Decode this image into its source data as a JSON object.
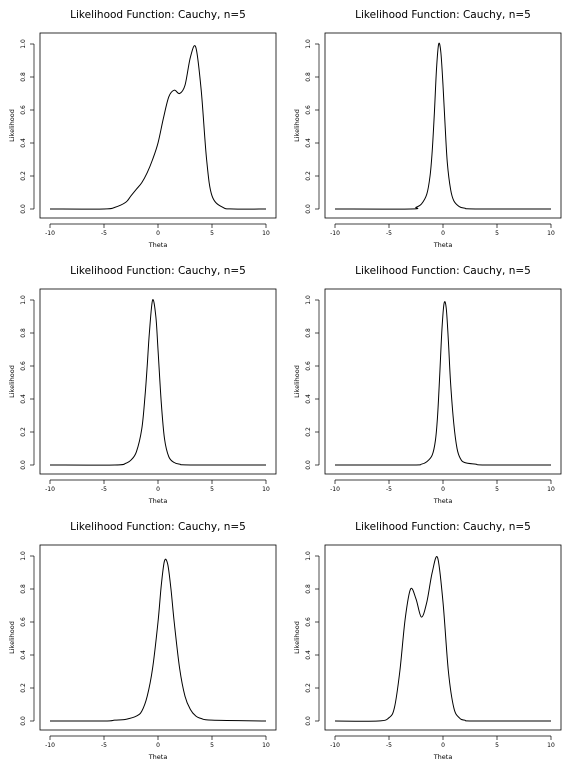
{
  "chart_data": [
    {
      "type": "line",
      "title": "Likelihood Function: Cauchy, n=5",
      "xlabel": "Theta",
      "ylabel": "Likelihood",
      "xlim": [
        -10,
        10
      ],
      "ylim": [
        0,
        1
      ],
      "xticks": [
        "-10",
        "-5",
        "0",
        "5",
        "10"
      ],
      "yticks": [
        "0.0",
        "0.2",
        "0.4",
        "0.6",
        "0.8",
        "1.0"
      ],
      "series": [
        {
          "x": [
            -10,
            -5,
            -4,
            -3,
            -2.5,
            -2,
            -1.5,
            -1,
            -0.5,
            0,
            0.5,
            1,
            1.5,
            2,
            2.5,
            3,
            3.5,
            4,
            4.5,
            5,
            6,
            7,
            10
          ],
          "y": [
            0,
            0,
            0.01,
            0.04,
            0.08,
            0.12,
            0.16,
            0.22,
            0.3,
            0.4,
            0.55,
            0.68,
            0.72,
            0.7,
            0.75,
            0.92,
            0.98,
            0.72,
            0.3,
            0.08,
            0.01,
            0,
            0
          ]
        }
      ]
    },
    {
      "type": "line",
      "title": "Likelihood Function: Cauchy, n=5",
      "xlabel": "Theta",
      "ylabel": "Likelihood",
      "xlim": [
        -10,
        10
      ],
      "ylim": [
        0,
        1
      ],
      "xticks": [
        "-10",
        "-5",
        "0",
        "5",
        "10"
      ],
      "yticks": [
        "0.0",
        "0.2",
        "0.4",
        "0.6",
        "0.8",
        "1.0"
      ],
      "series": [
        {
          "x": [
            -10,
            -3,
            -2.5,
            -2,
            -1.5,
            -1.2,
            -1,
            -0.8,
            -0.6,
            -0.4,
            -0.2,
            0,
            0.2,
            0.4,
            0.7,
            1,
            1.5,
            2,
            3,
            10
          ],
          "y": [
            0,
            0,
            0.01,
            0.03,
            0.09,
            0.2,
            0.35,
            0.58,
            0.85,
            1.0,
            0.95,
            0.75,
            0.5,
            0.28,
            0.12,
            0.05,
            0.015,
            0.005,
            0,
            0
          ]
        }
      ]
    },
    {
      "type": "line",
      "title": "Likelihood Function: Cauchy, n=5",
      "xlabel": "Theta",
      "ylabel": "Likelihood",
      "xlim": [
        -10,
        10
      ],
      "ylim": [
        0,
        1
      ],
      "xticks": [
        "-10",
        "-5",
        "0",
        "5",
        "10"
      ],
      "yticks": [
        "0.0",
        "0.2",
        "0.4",
        "0.6",
        "0.8",
        "1.0"
      ],
      "series": [
        {
          "x": [
            -10,
            -4,
            -3,
            -2.5,
            -2,
            -1.5,
            -1.2,
            -1,
            -0.8,
            -0.5,
            -0.2,
            0,
            0.3,
            0.6,
            1,
            1.5,
            2,
            3,
            10
          ],
          "y": [
            0,
            0,
            0.01,
            0.03,
            0.08,
            0.22,
            0.42,
            0.6,
            0.8,
            1.0,
            0.9,
            0.7,
            0.38,
            0.16,
            0.05,
            0.015,
            0.005,
            0,
            0
          ]
        }
      ]
    },
    {
      "type": "line",
      "title": "Likelihood Function: Cauchy, n=5",
      "xlabel": "Theta",
      "ylabel": "Likelihood",
      "xlim": [
        -10,
        10
      ],
      "ylim": [
        0,
        1
      ],
      "xticks": [
        "-10",
        "-5",
        "0",
        "5",
        "10"
      ],
      "yticks": [
        "0.0",
        "0.2",
        "0.4",
        "0.6",
        "0.8",
        "1.0"
      ],
      "series": [
        {
          "x": [
            -10,
            -3,
            -2,
            -1.5,
            -1,
            -0.7,
            -0.5,
            -0.3,
            -0.1,
            0.1,
            0.3,
            0.5,
            0.7,
            1,
            1.3,
            1.6,
            2,
            3,
            4,
            10
          ],
          "y": [
            0,
            0,
            0.005,
            0.02,
            0.06,
            0.15,
            0.3,
            0.55,
            0.82,
            0.98,
            0.95,
            0.75,
            0.5,
            0.25,
            0.1,
            0.04,
            0.015,
            0.005,
            0,
            0
          ]
        }
      ]
    },
    {
      "type": "line",
      "title": "Likelihood Function: Cauchy, n=5",
      "xlabel": "Theta",
      "ylabel": "Likelihood",
      "xlim": [
        -10,
        10
      ],
      "ylim": [
        0,
        1
      ],
      "xticks": [
        "-10",
        "-5",
        "0",
        "5",
        "10"
      ],
      "yticks": [
        "0.0",
        "0.2",
        "0.4",
        "0.6",
        "0.8",
        "1.0"
      ],
      "series": [
        {
          "x": [
            -10,
            -5,
            -4,
            -3,
            -2,
            -1.5,
            -1,
            -0.5,
            0,
            0.3,
            0.6,
            0.9,
            1.2,
            1.5,
            2,
            2.5,
            3,
            3.5,
            4,
            5,
            10
          ],
          "y": [
            0,
            0,
            0.005,
            0.01,
            0.03,
            0.06,
            0.15,
            0.32,
            0.6,
            0.82,
            0.97,
            0.95,
            0.8,
            0.6,
            0.32,
            0.15,
            0.07,
            0.03,
            0.015,
            0.005,
            0
          ]
        }
      ]
    },
    {
      "type": "line",
      "title": "Likelihood Function: Cauchy, n=5",
      "xlabel": "Theta",
      "ylabel": "Likelihood",
      "xlim": [
        -10,
        10
      ],
      "ylim": [
        0,
        1
      ],
      "xticks": [
        "-10",
        "-5",
        "0",
        "5",
        "10"
      ],
      "yticks": [
        "0.0",
        "0.2",
        "0.4",
        "0.6",
        "0.8",
        "1.0"
      ],
      "series": [
        {
          "x": [
            -10,
            -6,
            -5,
            -4.5,
            -4,
            -3.5,
            -3,
            -2.5,
            -2,
            -1.5,
            -1,
            -0.5,
            0,
            0.5,
            1,
            1.5,
            2,
            3,
            10
          ],
          "y": [
            0,
            0,
            0.02,
            0.08,
            0.3,
            0.62,
            0.8,
            0.74,
            0.63,
            0.72,
            0.9,
            0.99,
            0.72,
            0.3,
            0.08,
            0.02,
            0.005,
            0,
            0
          ]
        }
      ]
    }
  ]
}
